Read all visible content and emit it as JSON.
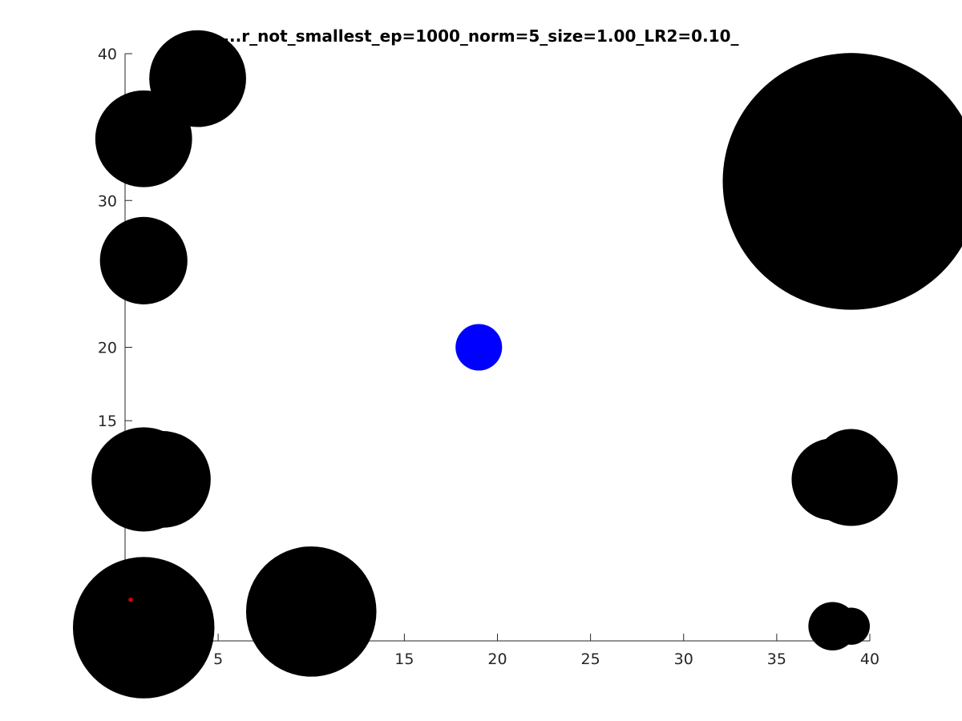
{
  "chart_data": {
    "type": "scatter",
    "title": "...r_not_smallest_ep=1000_norm=5_size=1.00_LR2=0.10_",
    "xlabel": "",
    "ylabel": "",
    "xlim": [
      0,
      40
    ],
    "ylim": [
      0,
      40
    ],
    "x_ticks": [
      5,
      10,
      15,
      20,
      25,
      30,
      35,
      40
    ],
    "x_tick_labels": [
      "5",
      "",
      "15",
      "20",
      "25",
      "30",
      "35",
      "40"
    ],
    "y_ticks": [
      5,
      10,
      15,
      20,
      25,
      30,
      35,
      40
    ],
    "y_tick_labels": [
      "",
      "",
      "15",
      "20",
      "",
      "30",
      "",
      "40"
    ],
    "grid": false,
    "series": [
      {
        "color": "#000000",
        "points": [
          {
            "x": 3.9,
            "y": 38.3,
            "r": 2.6
          },
          {
            "x": 1.0,
            "y": 34.2,
            "r": 2.6
          },
          {
            "x": 1.0,
            "y": 25.9,
            "r": 2.35
          },
          {
            "x": 39.0,
            "y": 31.3,
            "r": 6.9
          },
          {
            "x": 2.0,
            "y": 11.0,
            "r": 2.6
          },
          {
            "x": 1.0,
            "y": 11.0,
            "r": 2.8
          },
          {
            "x": 38.0,
            "y": 11.0,
            "r": 2.2
          },
          {
            "x": 39.0,
            "y": 11.0,
            "r": 2.5
          },
          {
            "x": 39.0,
            "y": 11.9,
            "r": 2.0
          },
          {
            "x": 1.0,
            "y": 0.9,
            "r": 3.8
          },
          {
            "x": 10.0,
            "y": 2.0,
            "r": 3.5
          },
          {
            "x": 38.0,
            "y": 1.0,
            "r": 1.3
          },
          {
            "x": 39.0,
            "y": 1.0,
            "r": 1.0
          }
        ]
      },
      {
        "color": "#0000ff",
        "points": [
          {
            "x": 19.0,
            "y": 20.0,
            "r": 1.25
          }
        ]
      },
      {
        "color": "#d40000",
        "points": [
          {
            "x": 0.3,
            "y": 2.8,
            "r": 0.12
          }
        ]
      }
    ]
  }
}
